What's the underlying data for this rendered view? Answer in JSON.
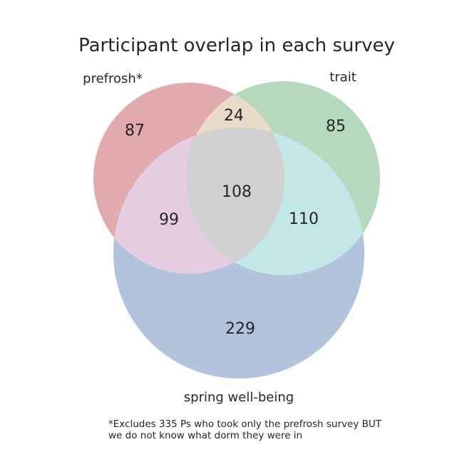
{
  "chart_data": {
    "type": "venn3",
    "title": "Participant overlap in each survey",
    "sets": [
      "prefrosh*",
      "trait",
      "spring well-being"
    ],
    "regions": {
      "prefrosh_only": 87,
      "trait_only": 85,
      "prefrosh_trait_only": 24,
      "prefrosh_spring_only": 99,
      "trait_spring_only": 110,
      "all_three": 108,
      "spring_only": 229
    },
    "colors": {
      "prefrosh": "#e2aaad",
      "trait": "#b5d9bd",
      "spring": "#b2c3de",
      "prefrosh_trait": "#e9dbc8",
      "prefrosh_spring": "#e4cce1",
      "trait_spring": "#c3e6e7",
      "all_three": "#d1d1d1"
    },
    "footnote": [
      "*Excludes 335 Ps who took only the prefrosh survey BUT",
      "we do not know what dorm they were in"
    ]
  }
}
